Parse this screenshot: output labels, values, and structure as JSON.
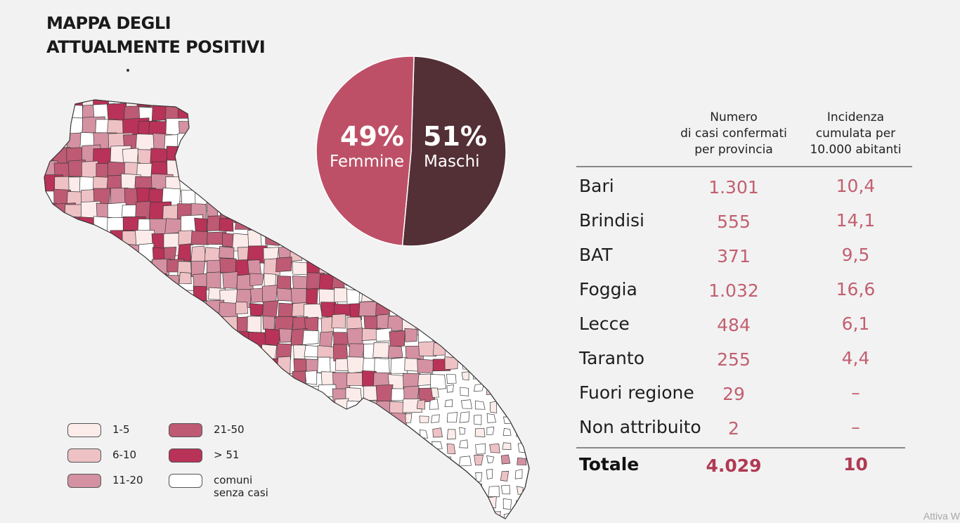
{
  "title": "MAPPA DEGLI\nATTUALMENTE POSITIVI",
  "legend": [
    {
      "label": "1-5",
      "color": "#fbecea"
    },
    {
      "label": "6-10",
      "color": "#eec2c5"
    },
    {
      "label": "11-20",
      "color": "#d491a2"
    },
    {
      "label": "21-50",
      "color": "#be5a73"
    },
    {
      "label": "> 51",
      "color": "#b93257"
    },
    {
      "label": "comuni\nsenza casi",
      "color": "#ffffff"
    }
  ],
  "chart_data": {
    "type": "pie",
    "series": [
      {
        "name": "Femmine",
        "value": 49,
        "label": "49%",
        "color": "#bd5067"
      },
      {
        "name": "Maschi",
        "value": 51,
        "label": "51%",
        "color": "#532f36"
      }
    ]
  },
  "table": {
    "headers": [
      "Numero\ndi casi confermati\nper provincia",
      "Incidenza\ncumulata per\n10.000 abitanti"
    ],
    "rows": [
      {
        "name": "Bari",
        "cases": "1.301",
        "incidence": "10,4"
      },
      {
        "name": "Brindisi",
        "cases": "555",
        "incidence": "14,1"
      },
      {
        "name": "BAT",
        "cases": "371",
        "incidence": "9,5"
      },
      {
        "name": "Foggia",
        "cases": "1.032",
        "incidence": "16,6"
      },
      {
        "name": "Lecce",
        "cases": "484",
        "incidence": "6,1"
      },
      {
        "name": "Taranto",
        "cases": "255",
        "incidence": "4,4"
      },
      {
        "name": "Fuori regione",
        "cases": "29",
        "incidence": "–"
      },
      {
        "name": "Non attribuito",
        "cases": "2",
        "incidence": "–"
      }
    ],
    "total": {
      "name": "Totale",
      "cases": "4.029",
      "incidence": "10"
    }
  },
  "watermark": "Attiva W"
}
